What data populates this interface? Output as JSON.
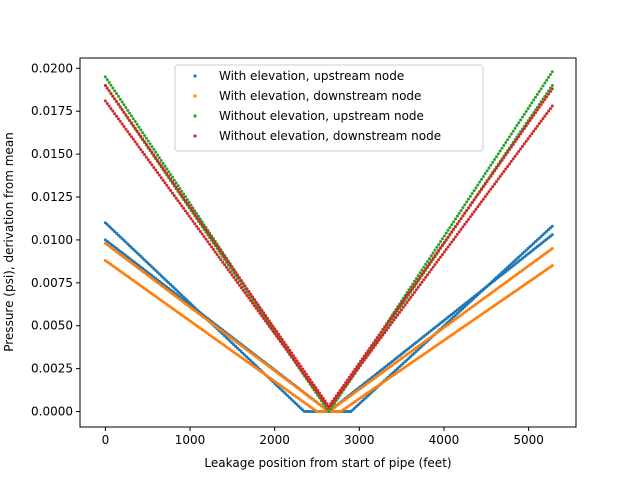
{
  "chart_data": {
    "type": "scatter",
    "title": "",
    "xlabel": "Leakage position from start of pipe (feet)",
    "ylabel": "Pressure (psi), derivation from mean",
    "xlim": [
      -300,
      5560
    ],
    "ylim": [
      -0.0009,
      0.0206
    ],
    "xticks": [
      0,
      1000,
      2000,
      3000,
      4000,
      5000
    ],
    "yticks": [
      0.0,
      0.0025,
      0.005,
      0.0075,
      0.01,
      0.0125,
      0.015,
      0.0175,
      0.02
    ],
    "xtick_labels": [
      "0",
      "1000",
      "2000",
      "3000",
      "4000",
      "5000"
    ],
    "ytick_labels": [
      "0.0000",
      "0.0025",
      "0.0050",
      "0.0075",
      "0.0100",
      "0.0125",
      "0.0150",
      "0.0175",
      "0.0200"
    ],
    "grid": false,
    "legend_position": "top-center",
    "x_range": [
      0,
      5280
    ],
    "series": [
      {
        "name": "With elevation, upstream node",
        "color": "#1f77b4",
        "vertex_x": 2640,
        "branches": [
          {
            "points": [
              [
                0,
                0.01
              ],
              [
                2640,
                0.0
              ],
              [
                5280,
                0.0103
              ]
            ]
          },
          {
            "points": [
              [
                0,
                0.011
              ],
              [
                2350,
                0.0
              ],
              [
                2900,
                0.0
              ],
              [
                5280,
                0.0108
              ]
            ]
          }
        ]
      },
      {
        "name": "With elevation, downstream node",
        "color": "#ff7f0e",
        "vertex_x": 2640,
        "branches": [
          {
            "points": [
              [
                0,
                0.0098
              ],
              [
                2640,
                0.0
              ],
              [
                5280,
                0.0095
              ]
            ]
          },
          {
            "points": [
              [
                0,
                0.0088
              ],
              [
                2500,
                0.0
              ],
              [
                2780,
                0.0
              ],
              [
                5280,
                0.0085
              ]
            ]
          }
        ]
      },
      {
        "name": "Without elevation, upstream node",
        "color": "#2ca02c",
        "vertex_x": 2640,
        "branches": [
          {
            "points": [
              [
                0,
                0.0195
              ],
              [
                2640,
                0.0
              ],
              [
                5280,
                0.0198
              ]
            ]
          },
          {
            "points": [
              [
                0,
                0.019
              ],
              [
                2640,
                0.0
              ],
              [
                5280,
                0.019
              ]
            ]
          }
        ]
      },
      {
        "name": "Without elevation, downstream node",
        "color": "#d62728",
        "vertex_x": 2640,
        "branches": [
          {
            "points": [
              [
                0,
                0.0181
              ],
              [
                2640,
                0.0002
              ],
              [
                5280,
                0.0178
              ]
            ]
          },
          {
            "points": [
              [
                0,
                0.019
              ],
              [
                2640,
                0.0003
              ],
              [
                5280,
                0.0188
              ]
            ]
          }
        ]
      }
    ]
  }
}
